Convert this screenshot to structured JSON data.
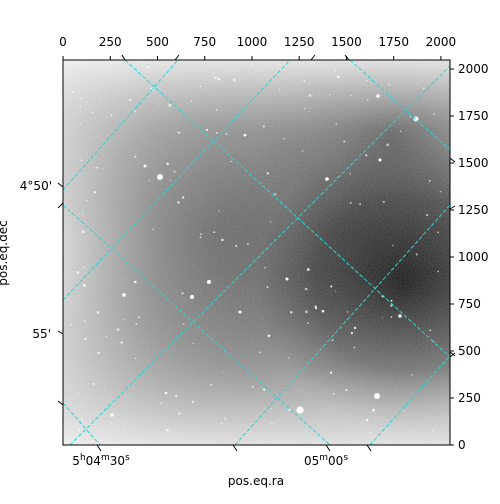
{
  "figure": {
    "xlabel": "pos.eq.ra",
    "ylabel": "pos.eq.dec",
    "top_ticks": [
      "0",
      "250",
      "500",
      "750",
      "1000",
      "1250",
      "1500",
      "1750",
      "2000"
    ],
    "right_ticks": [
      "0",
      "250",
      "500",
      "750",
      "1000",
      "1250",
      "1500",
      "1750",
      "2000"
    ],
    "ra_ticks": [
      {
        "base": "5",
        "h": "h",
        "min": "04",
        "m": "m",
        "sec": "30",
        "s": "s"
      },
      {
        "base": "",
        "h": "",
        "min": "05",
        "m": "m",
        "sec": "00",
        "s": "s"
      }
    ],
    "dec_ticks": [
      "4°50'",
      "55'"
    ],
    "grid_color": "#2ad4d4",
    "image_description_colors": {
      "background": "#ffffff",
      "frame": "#000000"
    }
  }
}
